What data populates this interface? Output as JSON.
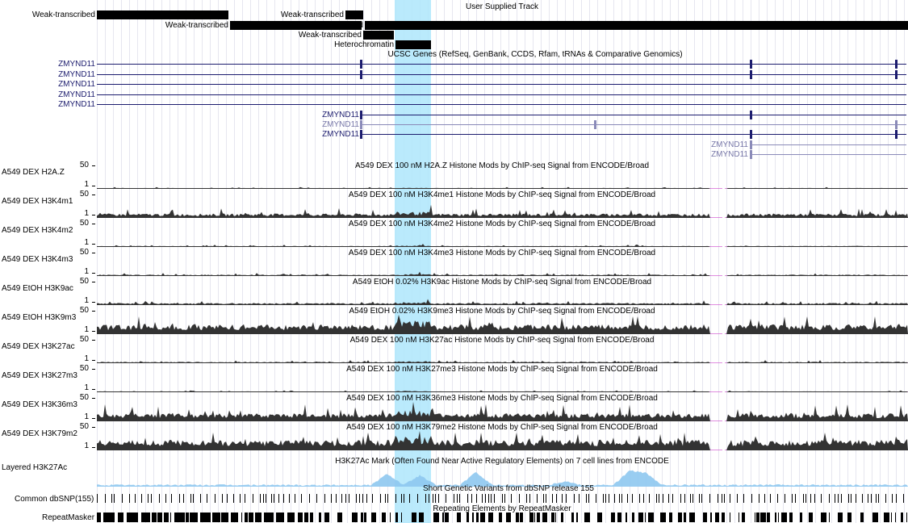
{
  "user_track": {
    "title": "User Supplied Track",
    "segments": [
      {
        "label": "Weak-transcribed",
        "start": 120,
        "end": 283,
        "row": 0
      },
      {
        "label": "Weak-transcribed",
        "start": 428,
        "end": 450,
        "row": 0
      },
      {
        "label": "Weak-transcribed",
        "start": 285,
        "end": 448,
        "row": 1
      },
      {
        "label": "Weak-transcribed",
        "start": 452,
        "end": 1125,
        "row": 1
      },
      {
        "label": "Weak-transcribed",
        "start": 450,
        "end": 488,
        "row": 2
      },
      {
        "label": "Heterochromatin",
        "start": 490,
        "end": 534,
        "row": 3
      }
    ]
  },
  "genes": {
    "title": "UCSC Genes (RefSeq, GenBank, CCDS, Rfam, tRNAs & Comparative Genomics)",
    "gene_name": "ZMYND11",
    "rows": [
      {
        "label": "ZMYND11",
        "light": false
      },
      {
        "label": "ZMYND11",
        "light": false
      },
      {
        "label": "ZMYND11",
        "light": false
      },
      {
        "label": "ZMYND11",
        "light": false
      },
      {
        "label": "ZMYND11",
        "light": false
      },
      {
        "label": "ZMYND11",
        "light": false
      },
      {
        "label": "ZMYND11",
        "light": true
      },
      {
        "label": "ZMYND11",
        "light": false
      },
      {
        "label": "ZMYND11",
        "light": true
      },
      {
        "label": "ZMYND11",
        "light": true
      }
    ]
  },
  "signal_tracks": [
    {
      "label": "A549 DEX H2A.Z",
      "title": "A549 DEX 100 nM H2A.Z Histone Mods by ChIP-seq Signal from ENCODE/Broad",
      "max": "50",
      "min": "1",
      "level": 0.05
    },
    {
      "label": "A549 DEX H3K4m1",
      "title": "A549 DEX 100 nM H3K4me1 Histone Mods by ChIP-seq Signal from ENCODE/Broad",
      "max": "50",
      "min": "1",
      "level": 0.25
    },
    {
      "label": "A549 DEX H3K4m2",
      "title": "A549 DEX 100 nM H3K4me2 Histone Mods by ChIP-seq Signal from ENCODE/Broad",
      "max": "50",
      "min": "1",
      "level": 0.06
    },
    {
      "label": "A549 DEX H3K4m3",
      "title": "A549 DEX 100 nM H3K4me3 Histone Mods by ChIP-seq Signal from ENCODE/Broad",
      "max": "50",
      "min": "1",
      "level": 0.08
    },
    {
      "label": "A549 EtOH H3K9ac",
      "title": "A549 EtOH 0.02% H3K9ac Histone Mods by ChIP-seq Signal from ENCODE/Broad",
      "max": "50",
      "min": "1",
      "level": 0.12
    },
    {
      "label": "A549 EtOH H3K9m3",
      "title": "A549 EtOH 0.02% H3K9me3 Histone Mods by ChIP-seq Signal from ENCODE/Broad",
      "max": "50",
      "min": "1",
      "level": 0.55
    },
    {
      "label": "A549 DEX H3K27ac",
      "title": "A549 DEX 100 nM H3K27ac Histone Mods by ChIP-seq Signal from ENCODE/Broad",
      "max": "50",
      "min": "1",
      "level": 0.08
    },
    {
      "label": "A549 DEX H3K27m3",
      "title": "A549 DEX 100 nM H3K27me3 Histone Mods by ChIP-seq Signal from ENCODE/Broad",
      "max": "50",
      "min": "1",
      "level": 0.05
    },
    {
      "label": "A549 DEX H3K36m3",
      "title": "A549 DEX 100 nM H3K36me3 Histone Mods by ChIP-seq Signal from ENCODE/Broad",
      "max": "50",
      "min": "1",
      "level": 0.45
    },
    {
      "label": "A549 DEX H3K79m2",
      "title": "A549 DEX 100 nM H3K79me2 Histone Mods by ChIP-seq Signal from ENCODE/Broad",
      "max": "50",
      "min": "1",
      "level": 0.6
    }
  ],
  "layered": {
    "label": "Layered H3K27Ac",
    "title": "H3K27Ac Mark (Often Found Near Active Regulatory Elements) on 7 cell lines from ENCODE",
    "color": "#8ec8f0"
  },
  "dbsnp": {
    "label": "Common dbSNP(155)",
    "title": "Short Genetic Variants from dbSNP release 155"
  },
  "repeatmasker": {
    "label": "RepeatMasker",
    "title": "Repeating Elements by RepeatMasker"
  },
  "colors": {
    "highlight": "#aee6fb",
    "gene": "#1c1c6e",
    "gene_light": "#8a8ab8",
    "signal": "#333333",
    "missing": "#cc44cc"
  }
}
